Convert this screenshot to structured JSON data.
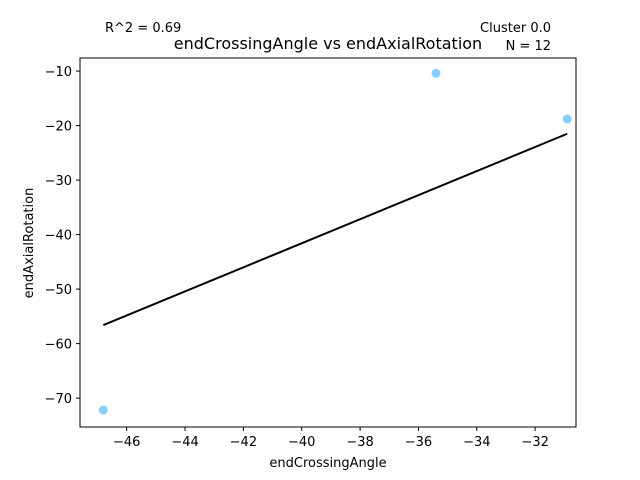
{
  "chart_data": {
    "type": "scatter",
    "title": "endCrossingAngle vs endAxialRotation",
    "xlabel": "endCrossingAngle",
    "ylabel": "endAxialRotation",
    "xlim": [
      -47.6,
      -30.6
    ],
    "ylim": [
      -75.3,
      -7.6
    ],
    "xticks": [
      -46,
      -44,
      -42,
      -40,
      -38,
      -36,
      -34,
      -32
    ],
    "yticks": [
      -70,
      -60,
      -50,
      -40,
      -30,
      -20,
      -10
    ],
    "annotations": {
      "r_squared": "R^2 = 0.69",
      "cluster": "Cluster 0.0",
      "n": "N = 12"
    },
    "points": {
      "x": [
        -46.8,
        -35.4,
        -30.9
      ],
      "y": [
        -72.2,
        -10.4,
        -18.8
      ],
      "color": "#87cefa"
    },
    "fit_line": {
      "x": [
        -46.8,
        -30.9
      ],
      "y": [
        -56.6,
        -21.5
      ],
      "color": "#000000"
    },
    "grid": false,
    "legend": false
  }
}
